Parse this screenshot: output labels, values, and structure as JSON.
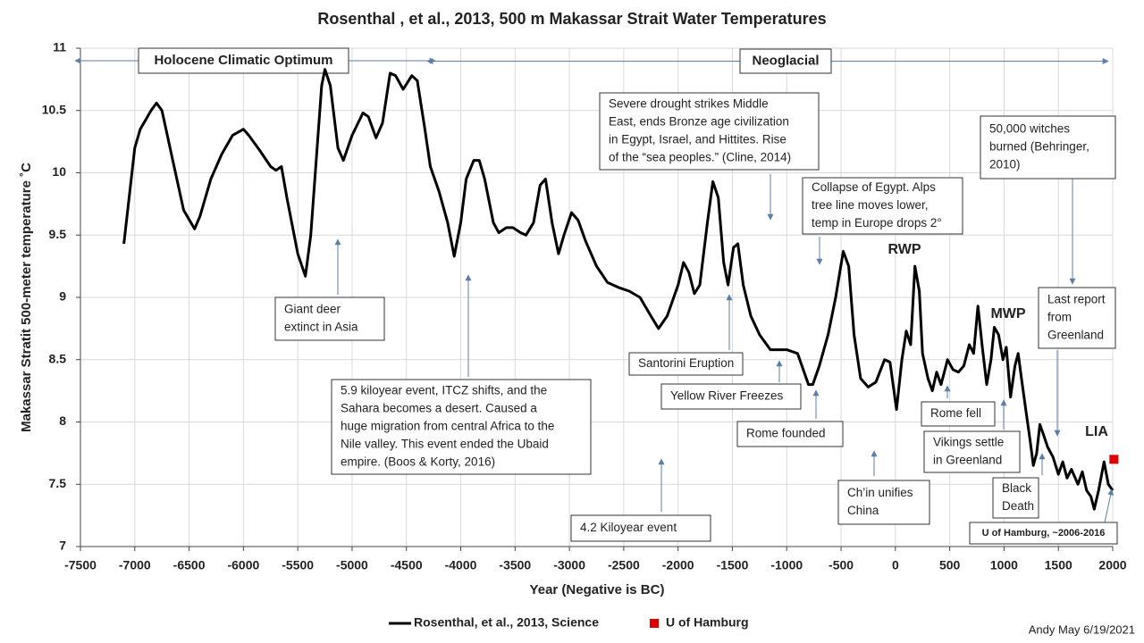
{
  "chart_data": {
    "type": "line",
    "title": "Rosenthal , et al., 2013, 500 m Makassar Strait Water Temperatures",
    "x_label": "Year (Negative is BC)",
    "y_label": "Makassar Stratit 500-meter temperature ˚C",
    "xlim": [
      -7500,
      2000
    ],
    "ylim": [
      7,
      11
    ],
    "xticks": [
      -7500,
      -7000,
      -6500,
      -6000,
      -5500,
      -5000,
      -4500,
      -4000,
      -3500,
      -3000,
      -2500,
      -2000,
      -1500,
      -1000,
      -500,
      0,
      500,
      1000,
      1500,
      2000
    ],
    "yticks": [
      7,
      7.5,
      8,
      8.5,
      9,
      9.5,
      10,
      10.5,
      11
    ],
    "grid": true,
    "series": [
      {
        "name": "Rosenthal, et al., 2013, Science",
        "color": "#000000",
        "marker": "none",
        "x": [
          -7100,
          -7000,
          -6950,
          -6850,
          -6800,
          -6750,
          -6650,
          -6550,
          -6450,
          -6400,
          -6300,
          -6200,
          -6100,
          -6000,
          -5950,
          -5850,
          -5750,
          -5700,
          -5650,
          -5600,
          -5500,
          -5430,
          -5380,
          -5330,
          -5280,
          -5250,
          -5200,
          -5130,
          -5080,
          -5000,
          -4900,
          -4850,
          -4780,
          -4720,
          -4650,
          -4600,
          -4530,
          -4450,
          -4400,
          -4330,
          -4280,
          -4200,
          -4120,
          -4060,
          -4000,
          -3950,
          -3880,
          -3830,
          -3780,
          -3700,
          -3650,
          -3580,
          -3520,
          -3450,
          -3400,
          -3330,
          -3270,
          -3220,
          -3160,
          -3100,
          -3050,
          -2980,
          -2920,
          -2850,
          -2750,
          -2650,
          -2550,
          -2450,
          -2350,
          -2250,
          -2180,
          -2100,
          -2000,
          -1950,
          -1900,
          -1850,
          -1800,
          -1730,
          -1680,
          -1630,
          -1580,
          -1540,
          -1490,
          -1450,
          -1400,
          -1330,
          -1250,
          -1150,
          -1000,
          -900,
          -800,
          -760,
          -700,
          -620,
          -550,
          -480,
          -430,
          -380,
          -320,
          -250,
          -180,
          -100,
          -50,
          10,
          60,
          100,
          140,
          180,
          220,
          250,
          300,
          340,
          380,
          420,
          480,
          530,
          580,
          630,
          680,
          720,
          760,
          800,
          840,
          880,
          910,
          950,
          990,
          1020,
          1060,
          1100,
          1130,
          1160,
          1200,
          1240,
          1270,
          1300,
          1330,
          1370,
          1400,
          1450,
          1500,
          1540,
          1580,
          1620,
          1680,
          1720,
          1760,
          1800,
          1830,
          1870,
          1920,
          1960,
          2000
        ],
        "values": [
          9.43,
          10.2,
          10.35,
          10.5,
          10.56,
          10.5,
          10.1,
          9.7,
          9.55,
          9.65,
          9.95,
          10.15,
          10.3,
          10.35,
          10.3,
          10.18,
          10.05,
          10.02,
          10.05,
          9.8,
          9.35,
          9.17,
          9.5,
          10.1,
          10.7,
          10.83,
          10.7,
          10.2,
          10.1,
          10.3,
          10.48,
          10.45,
          10.28,
          10.4,
          10.8,
          10.78,
          10.67,
          10.78,
          10.74,
          10.35,
          10.05,
          9.85,
          9.6,
          9.33,
          9.6,
          9.95,
          10.1,
          10.1,
          9.95,
          9.6,
          9.52,
          9.56,
          9.56,
          9.52,
          9.5,
          9.6,
          9.9,
          9.95,
          9.6,
          9.35,
          9.5,
          9.68,
          9.62,
          9.45,
          9.25,
          9.12,
          9.08,
          9.05,
          9.0,
          8.85,
          8.75,
          8.85,
          9.1,
          9.28,
          9.2,
          9.03,
          9.1,
          9.6,
          9.93,
          9.8,
          9.28,
          9.1,
          9.4,
          9.43,
          9.1,
          8.85,
          8.7,
          8.58,
          8.58,
          8.55,
          8.3,
          8.3,
          8.45,
          8.7,
          9.0,
          9.37,
          9.25,
          8.7,
          8.35,
          8.28,
          8.32,
          8.5,
          8.48,
          8.1,
          8.5,
          8.73,
          8.62,
          9.25,
          9.05,
          8.55,
          8.35,
          8.25,
          8.4,
          8.3,
          8.5,
          8.42,
          8.4,
          8.45,
          8.62,
          8.55,
          8.93,
          8.6,
          8.3,
          8.5,
          8.76,
          8.7,
          8.5,
          8.6,
          8.2,
          8.45,
          8.55,
          8.35,
          8.1,
          7.85,
          7.65,
          7.75,
          7.98,
          7.88,
          7.8,
          7.72,
          7.58,
          7.68,
          7.55,
          7.62,
          7.5,
          7.6,
          7.45,
          7.4,
          7.3,
          7.45,
          7.68,
          7.5,
          7.45
        ]
      },
      {
        "name": "U of Hamburg",
        "color": "#e00000",
        "marker": "square",
        "x": [
          2011
        ],
        "values": [
          7.7
        ]
      }
    ],
    "eras": [
      "Holocene Climatic Optimum",
      "Neoglacial"
    ],
    "periods": [
      "RWP",
      "MWP",
      "LIA"
    ],
    "annotations": [
      {
        "lines": [
          "Giant deer",
          "extinct in Asia"
        ]
      },
      {
        "lines": [
          "5.9 kiloyear event, ITCZ shifts, and the",
          "Sahara becomes a desert.  Caused a",
          "huge migration from central Africa to the",
          "Nile valley.  This event ended the Ubaid",
          "empire. (Boos & Korty, 2016)"
        ]
      },
      {
        "lines": [
          "4.2 Kiloyear event"
        ]
      },
      {
        "lines": [
          "Severe drought strikes Middle",
          "East, ends Bronze age civilization",
          "in Egypt, Israel, and Hittites. Rise",
          "of the “sea peoples.” (Cline, 2014)"
        ]
      },
      {
        "lines": [
          "Collapse of Egypt. Alps",
          "tree line moves lower,",
          "temp in Europe drops 2°"
        ]
      },
      {
        "lines": [
          "Santorini  Eruption"
        ]
      },
      {
        "lines": [
          "Yellow River Freezes"
        ]
      },
      {
        "lines": [
          "Rome founded"
        ]
      },
      {
        "lines": [
          "Ch’in unifies",
          "China"
        ]
      },
      {
        "lines": [
          "Rome fell"
        ]
      },
      {
        "lines": [
          "Vikings settle",
          "in Greenland"
        ]
      },
      {
        "lines": [
          "Black",
          "Death"
        ]
      },
      {
        "lines": [
          "50,000 witches",
          "burned (Behringer,",
          "2010)"
        ]
      },
      {
        "lines": [
          "Last report",
          "from",
          "Greenland"
        ]
      },
      {
        "lines": [
          "U of Hamburg, ~2006-2016"
        ]
      }
    ],
    "credit": "Andy May   6/19/2021"
  }
}
